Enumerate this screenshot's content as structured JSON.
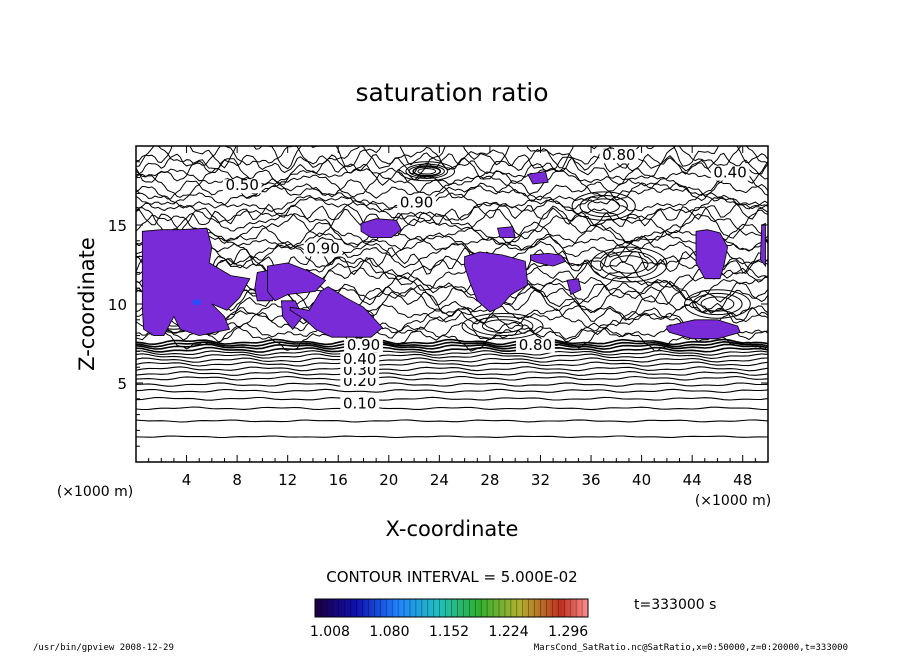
{
  "chart_data": {
    "type": "heatmap",
    "title": "saturation ratio",
    "xlabel": "X-coordinate",
    "ylabel": "Z-coordinate",
    "x_unit": "(×1000 m)",
    "y_unit": "(×1000 m)",
    "xlim": [
      0,
      50
    ],
    "ylim": [
      0,
      20
    ],
    "x_ticks": [
      4,
      8,
      12,
      16,
      20,
      24,
      28,
      32,
      36,
      40,
      44,
      48
    ],
    "y_ticks": [
      5,
      10,
      15
    ],
    "contour_interval_text": "CONTOUR INTERVAL = 5.000E-02",
    "time_text": "t=333000 s",
    "colorbar_ticks": [
      "1.008",
      "1.080",
      "1.152",
      "1.224",
      "1.296"
    ],
    "colorbar_range": [
      0.99,
      1.32
    ],
    "contour_labels": [
      {
        "text": "0.10",
        "x": 17.7,
        "z": 3.4
      },
      {
        "text": "0.20",
        "x": 17.7,
        "z": 4.8
      },
      {
        "text": "0.30",
        "x": 17.7,
        "z": 5.5
      },
      {
        "text": "0.40",
        "x": 17.7,
        "z": 6.2
      },
      {
        "text": "0.90",
        "x": 18.0,
        "z": 7.1
      },
      {
        "text": "0.80",
        "x": 38.2,
        "z": 19.1
      },
      {
        "text": "0.50",
        "x": 8.4,
        "z": 17.2
      },
      {
        "text": "0.90",
        "x": 22.2,
        "z": 16.1
      },
      {
        "text": "0.80",
        "x": 31.6,
        "z": 7.1
      },
      {
        "text": "0.90",
        "x": 14.8,
        "z": 13.2
      },
      {
        "text": "0.40",
        "x": 47.0,
        "z": 18.0
      }
    ],
    "supersaturated_regions": [
      {
        "x": [
          0.5,
          2,
          3.5,
          5.6,
          6,
          5.8,
          7.5,
          9,
          8.2,
          7.2,
          6,
          7,
          7.4,
          5,
          3.5,
          3,
          2.2,
          1.4,
          0.6,
          0.5
        ],
        "z": [
          14.6,
          14.7,
          14.7,
          14.8,
          13.6,
          12.6,
          11.8,
          11.6,
          10.4,
          9.6,
          10,
          9.2,
          8.4,
          8,
          8.4,
          9.2,
          8,
          8,
          8.4,
          9.8
        ]
      },
      {
        "x": [
          9.6,
          11,
          11.3,
          10.8,
          9.6,
          9.4
        ],
        "z": [
          12,
          12.2,
          11.3,
          10.2,
          10.2,
          11
        ]
      },
      {
        "x": [
          10.4,
          12,
          13.6,
          15,
          14.2,
          12,
          11,
          10.4
        ],
        "z": [
          12.4,
          12.6,
          12.1,
          11.5,
          10.8,
          10.6,
          10.2,
          10.8
        ]
      },
      {
        "x": [
          11.5,
          12.6,
          13.2,
          12.4,
          11.6
        ],
        "z": [
          10.2,
          10.2,
          9.2,
          8.4,
          9.2
        ]
      },
      {
        "x": [
          12.2,
          13.7,
          14.6,
          15.2,
          16.6,
          18,
          19.5,
          18.6,
          15.5,
          14.2,
          13.4,
          12.2
        ],
        "z": [
          9.8,
          9.6,
          10.8,
          11.1,
          10.4,
          9.8,
          8.5,
          7.9,
          7.9,
          8.4,
          9,
          9.6
        ]
      },
      {
        "x": [
          17.8,
          19,
          20.6,
          21,
          20.2,
          18.6,
          17.8
        ],
        "z": [
          15.1,
          15.4,
          15.3,
          14.7,
          14.2,
          14.2,
          14.6
        ]
      },
      {
        "x": [
          31.2,
          32.6,
          33.6,
          34,
          33,
          31.8,
          31.2
        ],
        "z": [
          13.1,
          13.2,
          13.1,
          12.7,
          12.4,
          12.6,
          12.8
        ]
      },
      {
        "x": [
          26,
          27.2,
          29,
          30.8,
          31,
          29.7,
          28.8,
          28,
          27,
          26.4,
          26
        ],
        "z": [
          13,
          13.3,
          13.1,
          12.7,
          11.2,
          10.6,
          9.8,
          9.5,
          10.2,
          11.4,
          12.4
        ]
      },
      {
        "x": [
          34.1,
          35,
          35.2,
          34.4
        ],
        "z": [
          11.5,
          11.6,
          10.9,
          10.6
        ]
      },
      {
        "x": [
          44.3,
          45.2,
          46.2,
          46.8,
          46.5,
          46.2,
          45,
          44.3
        ],
        "z": [
          14.6,
          14.7,
          14.5,
          13.6,
          12.4,
          11.6,
          11.6,
          12.6
        ]
      },
      {
        "x": [
          42,
          44.2,
          46,
          47.6,
          47.8,
          46,
          44,
          42.2,
          42
        ],
        "z": [
          8.6,
          9,
          9,
          8.6,
          8.2,
          7.8,
          7.8,
          8.2,
          8.4
        ]
      },
      {
        "x": [
          31,
          32.4,
          32.6,
          31.4
        ],
        "z": [
          18.2,
          18.4,
          17.7,
          17.6
        ]
      },
      {
        "x": [
          49.5,
          49.8,
          49.8,
          49.4
        ],
        "z": [
          15,
          15.1,
          12.4,
          12.8
        ]
      },
      {
        "x": [
          28.6,
          29.8,
          30,
          28.8
        ],
        "z": [
          14.8,
          14.9,
          14.2,
          14.2
        ]
      }
    ]
  },
  "footer": {
    "left_text": "/usr/bin/gpview  2008-12-29",
    "right_text": "MarsCond_SatRatio.nc@SatRatio,x=0:50000,z=0:20000,t=333000"
  }
}
